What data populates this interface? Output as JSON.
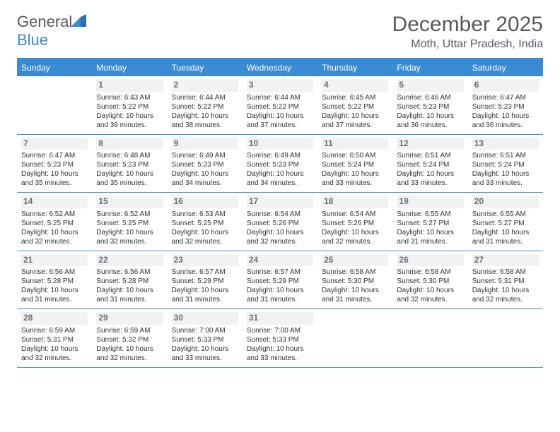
{
  "logo": {
    "text1": "General",
    "text2": "Blue"
  },
  "title": "December 2025",
  "location": "Moth, Uttar Pradesh, India",
  "colors": {
    "accent": "#3b8bd4",
    "header_text": "#ffffff",
    "body_text": "#333333",
    "muted": "#6a6f74",
    "daynum_bg": "#f2f2f2",
    "page_bg": "#ffffff"
  },
  "dayNames": [
    "Sunday",
    "Monday",
    "Tuesday",
    "Wednesday",
    "Thursday",
    "Friday",
    "Saturday"
  ],
  "weeks": [
    [
      null,
      {
        "n": "1",
        "sunrise": "Sunrise: 6:43 AM",
        "sunset": "Sunset: 5:22 PM",
        "daylight": "Daylight: 10 hours and 39 minutes."
      },
      {
        "n": "2",
        "sunrise": "Sunrise: 6:44 AM",
        "sunset": "Sunset: 5:22 PM",
        "daylight": "Daylight: 10 hours and 38 minutes."
      },
      {
        "n": "3",
        "sunrise": "Sunrise: 6:44 AM",
        "sunset": "Sunset: 5:22 PM",
        "daylight": "Daylight: 10 hours and 37 minutes."
      },
      {
        "n": "4",
        "sunrise": "Sunrise: 6:45 AM",
        "sunset": "Sunset: 5:22 PM",
        "daylight": "Daylight: 10 hours and 37 minutes."
      },
      {
        "n": "5",
        "sunrise": "Sunrise: 6:46 AM",
        "sunset": "Sunset: 5:23 PM",
        "daylight": "Daylight: 10 hours and 36 minutes."
      },
      {
        "n": "6",
        "sunrise": "Sunrise: 6:47 AM",
        "sunset": "Sunset: 5:23 PM",
        "daylight": "Daylight: 10 hours and 36 minutes."
      }
    ],
    [
      {
        "n": "7",
        "sunrise": "Sunrise: 6:47 AM",
        "sunset": "Sunset: 5:23 PM",
        "daylight": "Daylight: 10 hours and 35 minutes."
      },
      {
        "n": "8",
        "sunrise": "Sunrise: 6:48 AM",
        "sunset": "Sunset: 5:23 PM",
        "daylight": "Daylight: 10 hours and 35 minutes."
      },
      {
        "n": "9",
        "sunrise": "Sunrise: 6:49 AM",
        "sunset": "Sunset: 5:23 PM",
        "daylight": "Daylight: 10 hours and 34 minutes."
      },
      {
        "n": "10",
        "sunrise": "Sunrise: 6:49 AM",
        "sunset": "Sunset: 5:23 PM",
        "daylight": "Daylight: 10 hours and 34 minutes."
      },
      {
        "n": "11",
        "sunrise": "Sunrise: 6:50 AM",
        "sunset": "Sunset: 5:24 PM",
        "daylight": "Daylight: 10 hours and 33 minutes."
      },
      {
        "n": "12",
        "sunrise": "Sunrise: 6:51 AM",
        "sunset": "Sunset: 5:24 PM",
        "daylight": "Daylight: 10 hours and 33 minutes."
      },
      {
        "n": "13",
        "sunrise": "Sunrise: 6:51 AM",
        "sunset": "Sunset: 5:24 PM",
        "daylight": "Daylight: 10 hours and 33 minutes."
      }
    ],
    [
      {
        "n": "14",
        "sunrise": "Sunrise: 6:52 AM",
        "sunset": "Sunset: 5:25 PM",
        "daylight": "Daylight: 10 hours and 32 minutes."
      },
      {
        "n": "15",
        "sunrise": "Sunrise: 6:52 AM",
        "sunset": "Sunset: 5:25 PM",
        "daylight": "Daylight: 10 hours and 32 minutes."
      },
      {
        "n": "16",
        "sunrise": "Sunrise: 6:53 AM",
        "sunset": "Sunset: 5:25 PM",
        "daylight": "Daylight: 10 hours and 32 minutes."
      },
      {
        "n": "17",
        "sunrise": "Sunrise: 6:54 AM",
        "sunset": "Sunset: 5:26 PM",
        "daylight": "Daylight: 10 hours and 32 minutes."
      },
      {
        "n": "18",
        "sunrise": "Sunrise: 6:54 AM",
        "sunset": "Sunset: 5:26 PM",
        "daylight": "Daylight: 10 hours and 32 minutes."
      },
      {
        "n": "19",
        "sunrise": "Sunrise: 6:55 AM",
        "sunset": "Sunset: 5:27 PM",
        "daylight": "Daylight: 10 hours and 31 minutes."
      },
      {
        "n": "20",
        "sunrise": "Sunrise: 6:55 AM",
        "sunset": "Sunset: 5:27 PM",
        "daylight": "Daylight: 10 hours and 31 minutes."
      }
    ],
    [
      {
        "n": "21",
        "sunrise": "Sunrise: 6:56 AM",
        "sunset": "Sunset: 5:28 PM",
        "daylight": "Daylight: 10 hours and 31 minutes."
      },
      {
        "n": "22",
        "sunrise": "Sunrise: 6:56 AM",
        "sunset": "Sunset: 5:28 PM",
        "daylight": "Daylight: 10 hours and 31 minutes."
      },
      {
        "n": "23",
        "sunrise": "Sunrise: 6:57 AM",
        "sunset": "Sunset: 5:29 PM",
        "daylight": "Daylight: 10 hours and 31 minutes."
      },
      {
        "n": "24",
        "sunrise": "Sunrise: 6:57 AM",
        "sunset": "Sunset: 5:29 PM",
        "daylight": "Daylight: 10 hours and 31 minutes."
      },
      {
        "n": "25",
        "sunrise": "Sunrise: 6:58 AM",
        "sunset": "Sunset: 5:30 PM",
        "daylight": "Daylight: 10 hours and 31 minutes."
      },
      {
        "n": "26",
        "sunrise": "Sunrise: 6:58 AM",
        "sunset": "Sunset: 5:30 PM",
        "daylight": "Daylight: 10 hours and 32 minutes."
      },
      {
        "n": "27",
        "sunrise": "Sunrise: 6:58 AM",
        "sunset": "Sunset: 5:31 PM",
        "daylight": "Daylight: 10 hours and 32 minutes."
      }
    ],
    [
      {
        "n": "28",
        "sunrise": "Sunrise: 6:59 AM",
        "sunset": "Sunset: 5:31 PM",
        "daylight": "Daylight: 10 hours and 32 minutes."
      },
      {
        "n": "29",
        "sunrise": "Sunrise: 6:59 AM",
        "sunset": "Sunset: 5:32 PM",
        "daylight": "Daylight: 10 hours and 32 minutes."
      },
      {
        "n": "30",
        "sunrise": "Sunrise: 7:00 AM",
        "sunset": "Sunset: 5:33 PM",
        "daylight": "Daylight: 10 hours and 33 minutes."
      },
      {
        "n": "31",
        "sunrise": "Sunrise: 7:00 AM",
        "sunset": "Sunset: 5:33 PM",
        "daylight": "Daylight: 10 hours and 33 minutes."
      },
      null,
      null,
      null
    ]
  ]
}
